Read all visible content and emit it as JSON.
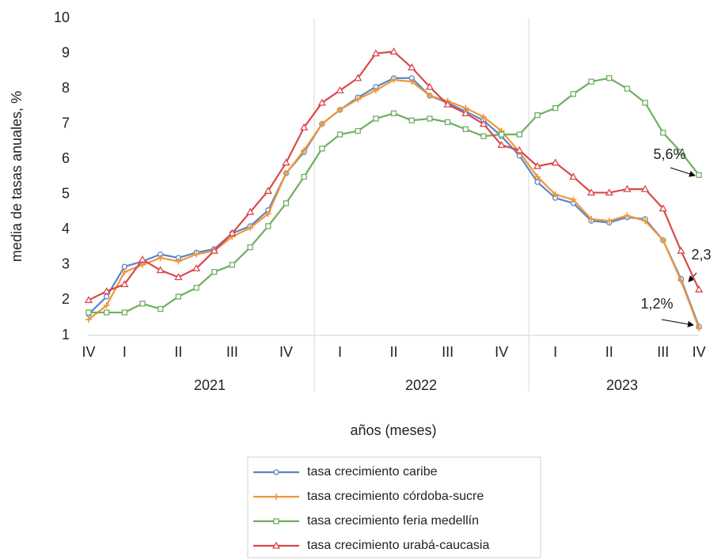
{
  "chart_data": {
    "type": "line",
    "y_label": "media de tasas anuales, %",
    "x_label": "años (meses)",
    "categories": [
      "IV",
      null,
      "I",
      null,
      null,
      "II",
      null,
      null,
      "III",
      null,
      null,
      "IV",
      null,
      null,
      "I",
      null,
      null,
      "II",
      null,
      null,
      "III",
      null,
      null,
      "IV",
      null,
      null,
      "I",
      null,
      null,
      "II",
      null,
      null,
      "III",
      null,
      "IV"
    ],
    "years": [
      "2021",
      "2022",
      "2023"
    ],
    "ylim": [
      1,
      10
    ],
    "yticks": [
      1,
      2,
      3,
      4,
      5,
      6,
      7,
      8,
      9,
      10
    ],
    "series": [
      {
        "name": "tasa crecimiento caribe",
        "color": "#5b86c5",
        "marker": "circle",
        "values": [
          1.6,
          2.1,
          2.95,
          3.1,
          3.3,
          3.2,
          3.35,
          3.45,
          3.9,
          4.1,
          4.55,
          5.6,
          6.2,
          7.0,
          7.4,
          7.75,
          8.05,
          8.3,
          8.3,
          7.8,
          7.6,
          7.35,
          7.1,
          6.65,
          6.1,
          5.35,
          4.9,
          4.75,
          4.25,
          4.2,
          4.35,
          4.3,
          3.7,
          2.6,
          1.25
        ]
      },
      {
        "name": "tasa crecimiento córdoba-sucre",
        "color": "#f0973a",
        "marker": "plus",
        "values": [
          1.45,
          1.85,
          2.8,
          3.0,
          3.2,
          3.1,
          3.3,
          3.4,
          3.8,
          4.05,
          4.45,
          5.6,
          6.25,
          7.0,
          7.4,
          7.7,
          7.95,
          8.25,
          8.2,
          7.8,
          7.65,
          7.45,
          7.2,
          6.8,
          6.2,
          5.5,
          5.0,
          4.85,
          4.3,
          4.25,
          4.4,
          4.25,
          3.7,
          2.55,
          1.2
        ]
      },
      {
        "name": "tasa crecimiento feria medellín",
        "color": "#6fae5f",
        "marker": "square",
        "values": [
          1.65,
          1.65,
          1.65,
          1.9,
          1.75,
          2.1,
          2.35,
          2.8,
          3.0,
          3.5,
          4.1,
          4.75,
          5.5,
          6.3,
          6.7,
          6.8,
          7.15,
          7.3,
          7.1,
          7.15,
          7.05,
          6.85,
          6.65,
          6.7,
          6.7,
          7.25,
          7.45,
          7.85,
          8.2,
          8.3,
          8.0,
          7.6,
          6.75,
          6.2,
          5.55
        ]
      },
      {
        "name": "tasa crecimiento urabá-caucasia",
        "color": "#d9484c",
        "marker": "triangle",
        "values": [
          2.0,
          2.25,
          2.45,
          3.15,
          2.85,
          2.65,
          2.9,
          3.4,
          3.9,
          4.5,
          5.1,
          5.9,
          6.9,
          7.6,
          7.95,
          8.3,
          9.0,
          9.05,
          8.6,
          8.05,
          7.55,
          7.3,
          7.0,
          6.4,
          6.25,
          5.8,
          5.9,
          5.5,
          5.05,
          5.05,
          5.15,
          5.15,
          4.6,
          3.4,
          2.3
        ]
      }
    ],
    "annotations": [
      "5,6%",
      "2,3",
      "1,2%"
    ]
  }
}
